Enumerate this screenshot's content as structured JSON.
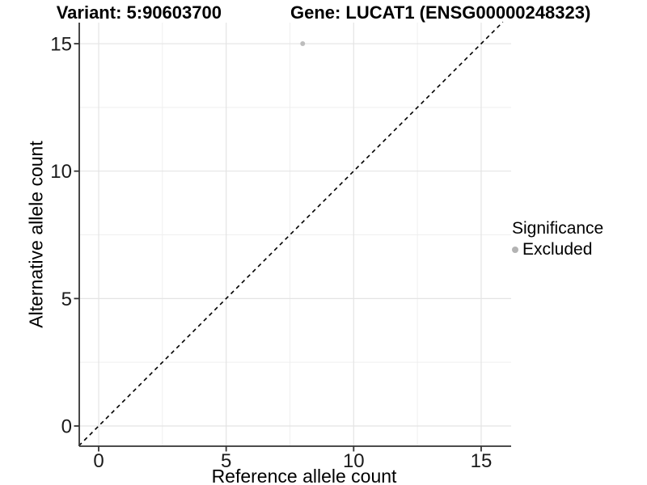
{
  "header": {
    "variant_title": "Variant: 5:90603700",
    "gene_title": "Gene: LUCAT1 (ENSG00000248323)"
  },
  "chart_data": {
    "type": "scatter",
    "title": "Variant: 5:90603700 — Gene: LUCAT1 (ENSG00000248323)",
    "xlabel": "Reference allele count",
    "ylabel": "Alternative allele count",
    "xlim": [
      -0.78,
      16.17
    ],
    "ylim": [
      -0.78,
      15.85
    ],
    "xticks": [
      0,
      5,
      10,
      15
    ],
    "yticks": [
      0,
      5,
      10,
      15
    ],
    "xticks_minor": [
      2.5,
      7.5,
      12.5
    ],
    "yticks_minor": [
      2.5,
      7.5,
      12.5
    ],
    "grid": "major+minor",
    "legend_position": "right",
    "series": [
      {
        "name": "Excluded",
        "color": "#bdbdbd",
        "points": [
          {
            "x": 8,
            "y": 15
          }
        ]
      }
    ],
    "reference_line": {
      "kind": "identity y=x",
      "style": "dashed",
      "color": "#000000",
      "from": -0.78,
      "to": 15.85
    },
    "legend": {
      "title": "Significance",
      "entries": [
        {
          "label": "Excluded",
          "color": "#b3b3b3"
        }
      ]
    }
  },
  "colors": {
    "background": "#ffffff",
    "axis": "#333333",
    "grid_major": "#e4e4e4",
    "grid_minor": "#efefef",
    "tick_text": "#1a1a1a"
  }
}
